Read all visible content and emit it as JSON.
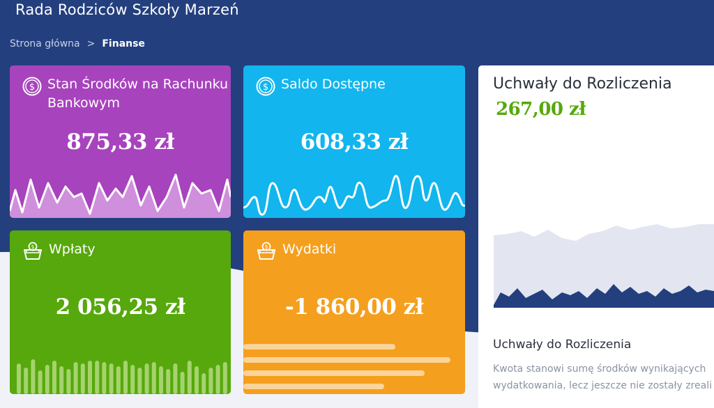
{
  "header": {
    "app_title": "Rada Rodziców Szkoły Marzeń"
  },
  "breadcrumb": {
    "home": "Strona główna",
    "separator": ">",
    "current": "Finanse"
  },
  "cards": [
    {
      "title": "Stan Środków na Rachunku Bankowym",
      "value": "875,33 zł",
      "icon": "dollar-coin-icon",
      "color": "#a743bd"
    },
    {
      "title": "Saldo Dostępne",
      "value": "608,33 zł",
      "icon": "dollar-coin-icon",
      "color": "#12b5ee"
    },
    {
      "title": "Wpłaty",
      "value": "2 056,25 zł",
      "icon": "money-basket-icon",
      "color": "#56a80c"
    },
    {
      "title": "Wydatki",
      "value": "-1 860,00 zł",
      "icon": "money-basket-icon",
      "color": "#f59f1e"
    }
  ],
  "resolutions_panel": {
    "title": "Uchwały do Rozliczenia",
    "amount": "267,00 zł",
    "subtitle": "Uchwały do Rozliczenia",
    "description_line1": "Kwota stanowi sumę środków wynikających",
    "description_line2": "wydatkowania, lecz jeszcze nie zostały zreali"
  },
  "colors": {
    "header_bg": "#233f7e",
    "accent_green": "#56a80c",
    "page_bg": "#f0f2f7"
  }
}
